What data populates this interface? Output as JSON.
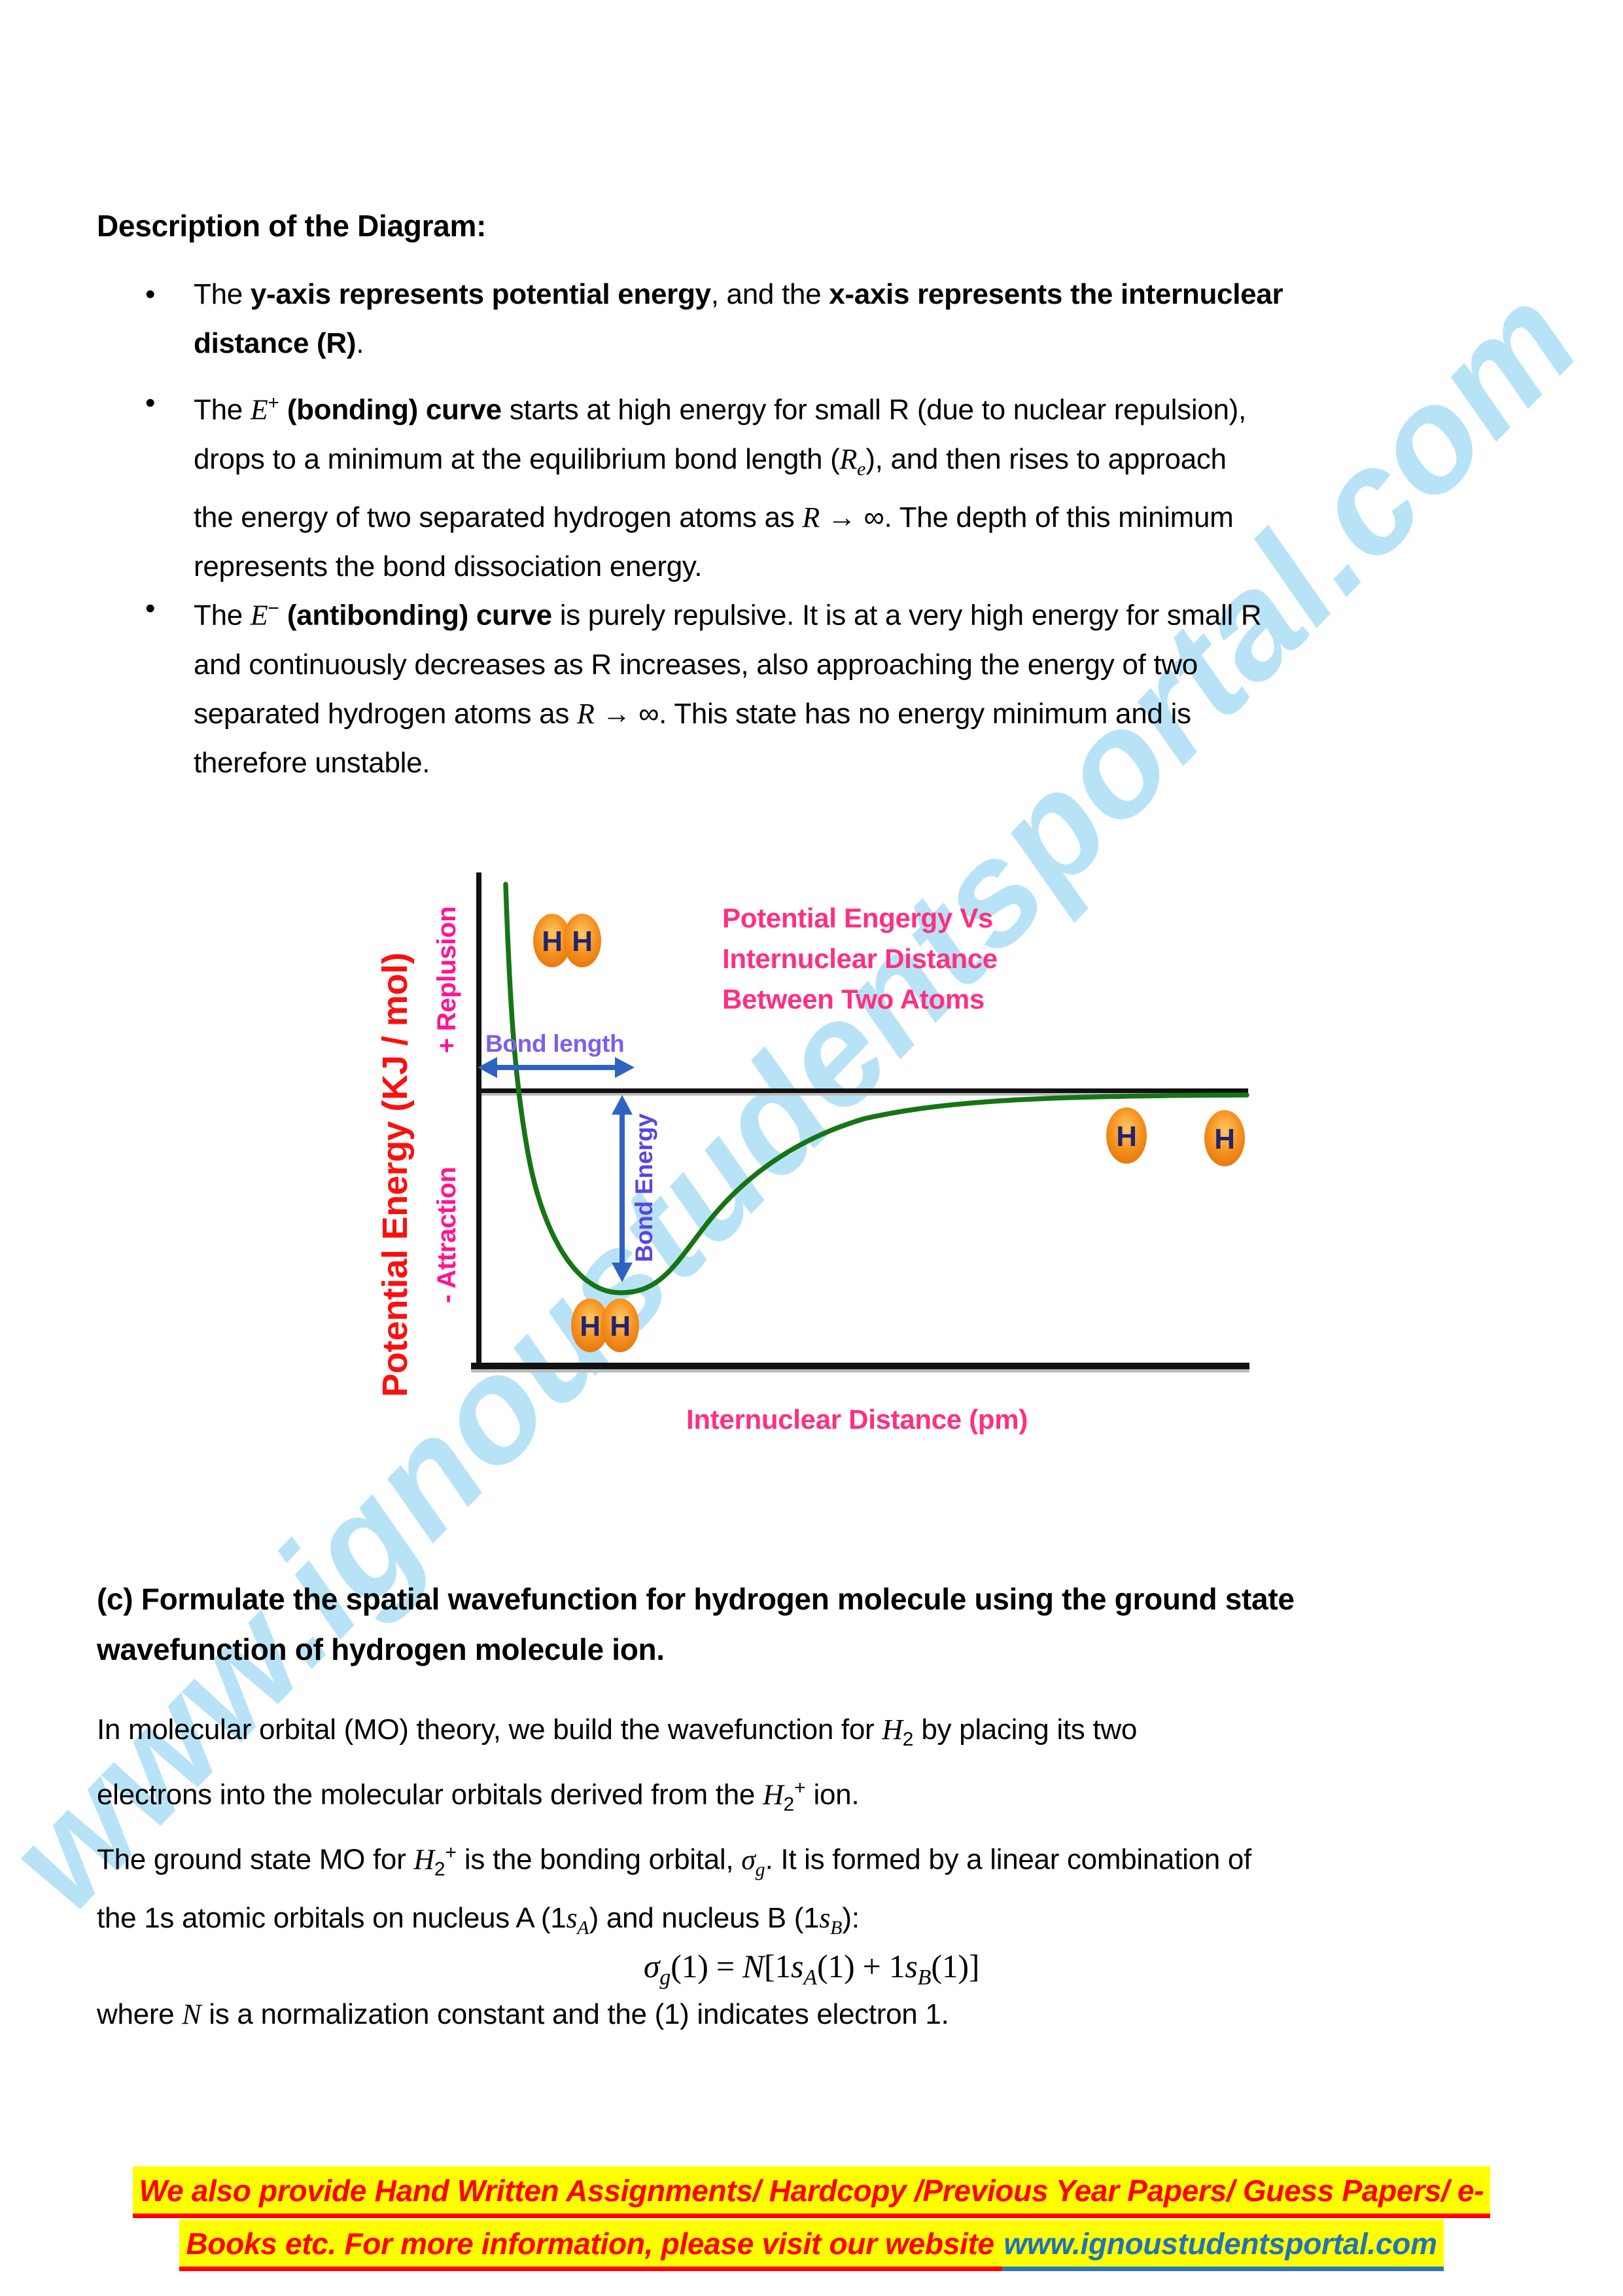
{
  "watermark": "www.ignoustudentsportal.com",
  "description": {
    "heading": "Description of the Diagram:",
    "bullets": [
      {
        "html": "The <b>y-axis represents potential energy</b>, and the <b>x-axis represents the internuclear<br>distance (R)</b>."
      },
      {
        "html": "The <em>E</em><sup>+</sup> <b>(bonding) curve</b> starts at high energy for small R (due to nuclear repulsion),<br>drops to a minimum at the equilibrium bond length (<em>R<sub>e</sub></em>), and then rises to approach<br>the energy of two separated hydrogen atoms as <em>R</em> → ∞. The depth of this minimum<br>represents the bond dissociation energy."
      },
      {
        "html": "The <em>E</em><sup>−</sup> <b>(antibonding) curve</b> is purely repulsive. It is at a very high energy for small R<br>and continuously decreases as R increases, also approaching the energy of two<br>separated hydrogen atoms as <em>R</em> → ∞. This state has no energy minimum and is<br>therefore unstable."
      }
    ]
  },
  "figure": {
    "title_lines": [
      "Potential Engergy Vs",
      "Internuclear Distance",
      "Between Two Atoms"
    ],
    "y_label": "Potential Energy (KJ / mol)",
    "y_upper": "+ Replusion",
    "y_lower": "- Attraction",
    "x_label": "Internuclear Distance (pm)",
    "bond_length_label": "Bond length",
    "bond_energy_label": "Bond Energy",
    "atom_symbol": "H",
    "colors": {
      "curve": "#157515",
      "axis": "#111111",
      "title_pink": "#ff2f80",
      "y_label_red": "#fb0f0f",
      "bond_length_purple": "#7d5fe8",
      "bond_energy_violet": "#5746df",
      "arrow_blue": "#2f63c1",
      "atom_orange": "#f5901e"
    }
  },
  "chart_data": {
    "type": "line",
    "title": "Potential Engergy Vs Internuclear Distance Between Two Atoms",
    "xlabel": "Internuclear Distance (pm)",
    "ylabel": "Potential Energy (KJ / mol)",
    "axis_annotations": {
      "y_positive_region": "+ Replusion",
      "y_negative_region": "- Attraction"
    },
    "annotations": [
      "Bond length",
      "Bond Energy"
    ],
    "grid": false,
    "numeric_ticks": false,
    "series": [
      {
        "name": "E+ bonding potential energy curve",
        "color": "#157515",
        "x_relative": [
          0.05,
          0.07,
          0.1,
          0.14,
          0.18,
          0.22,
          0.3,
          0.4,
          0.55,
          0.75,
          1.0
        ],
        "y_relative": [
          3.0,
          1.8,
          0.8,
          0.0,
          -0.7,
          -1.0,
          -0.75,
          -0.45,
          -0.2,
          -0.06,
          0.0
        ]
      }
    ],
    "markers": [
      {
        "label": "H H",
        "x_relative": 0.12,
        "y_relative": 1.2
      },
      {
        "label": "H H",
        "x_relative": 0.22,
        "y_relative": -1.15
      },
      {
        "label": "H",
        "x_relative": 0.86,
        "y_relative": -0.1
      },
      {
        "label": "H",
        "x_relative": 0.97,
        "y_relative": -0.1
      }
    ]
  },
  "section_c": {
    "heading_html": "(c) Formulate the spatial wavefunction for hydrogen molecule using the ground state<br>wavefunction of hydrogen molecule ion.",
    "paragraph_html": "In molecular orbital (MO) theory, we build the wavefunction for <em>H</em><sub>2</sub> by placing its two<br>electrons into the molecular orbitals derived from the <em>H</em><sub>2</sub><sup>+</sup> ion.<br>The ground state MO for <em>H</em><sub>2</sub><sup>+</sup> is the bonding orbital, <em>σ<sub>g</sub></em>. It is formed by a linear combination of<br>the 1s atomic orbitals on nucleus A (1<em>s<sub>A</sub></em>) and nucleus B (1<em>s<sub>B</sub></em>):",
    "equation_html": "<em>σ<sub>g</sub></em>(1) = <em>N</em>[1<em>s<sub>A</sub></em>(1) + 1<em>s<sub>B</sub></em>(1)]",
    "note_html": "where <em>N</em> is a normalization constant and the (1) indicates electron 1."
  },
  "footer": {
    "line1": "We also provide Hand Written Assignments/ Hardcopy /Previous Year Papers/ Guess Papers/ e-",
    "line2_prefix": "Books etc. For more information, please visit our website ",
    "link": "www.ignoustudentsportal.com"
  }
}
